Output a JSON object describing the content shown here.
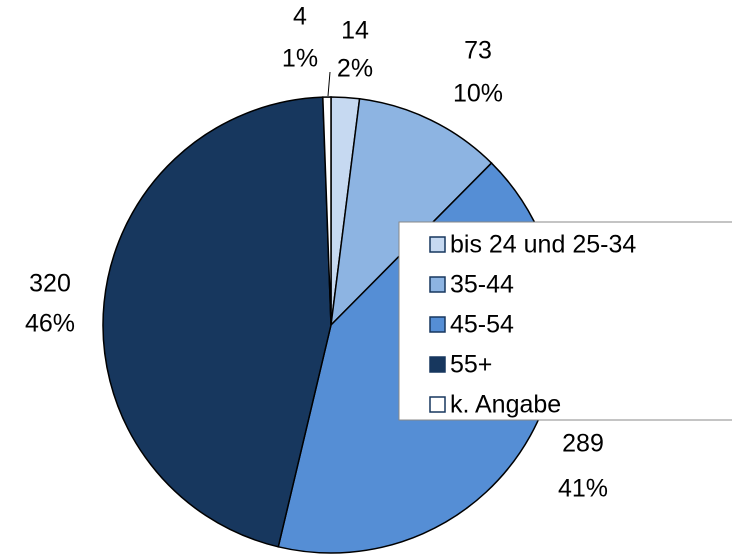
{
  "chart_data": {
    "type": "pie",
    "categories": [
      "bis 24 und 25-34",
      "35-44",
      "45-54",
      "55+",
      "k. Angabe"
    ],
    "values": [
      14,
      73,
      289,
      320,
      4
    ],
    "percents": [
      2,
      10,
      41,
      46,
      1
    ],
    "percent_labels": [
      "2%",
      "10%",
      "41%",
      "46%",
      "1%"
    ],
    "colors": [
      "#c6d9f1",
      "#8db4e2",
      "#558ed5",
      "#17375e",
      "#ffffff"
    ],
    "legend": "right"
  }
}
